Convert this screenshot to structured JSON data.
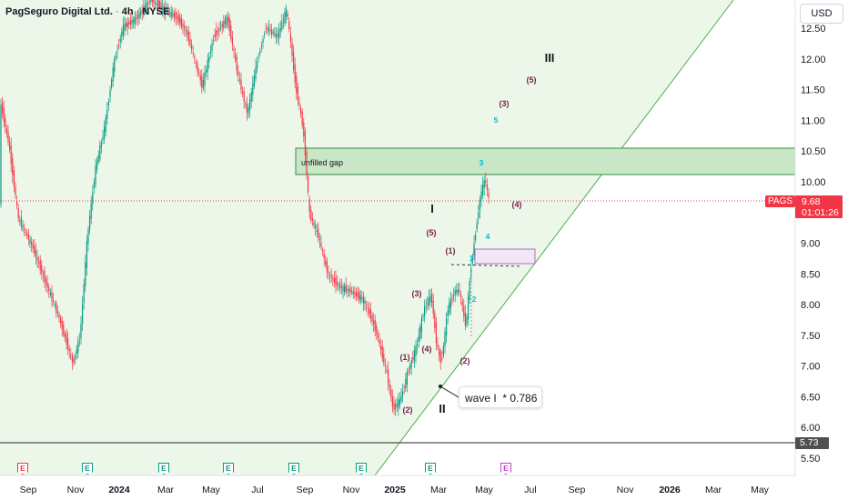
{
  "header": {
    "symbol_name": "PagSeguro Digital Ltd.",
    "interval": "4h",
    "exchange": "NYSE",
    "currency": "USD"
  },
  "price_axis": {
    "ticks": [
      "12.50",
      "12.00",
      "11.50",
      "11.00",
      "10.50",
      "10.00",
      "9.50",
      "9.00",
      "8.50",
      "8.00",
      "7.50",
      "7.00",
      "6.50",
      "6.00",
      "5.50"
    ]
  },
  "time_axis": {
    "ticks": [
      "Sep",
      "Nov",
      "2024",
      "Mar",
      "May",
      "Jul",
      "Sep",
      "Nov",
      "2025",
      "Mar",
      "May",
      "Jul",
      "Sep",
      "Nov",
      "2026",
      "Mar",
      "May"
    ],
    "bold": [
      "2024",
      "2025",
      "2026"
    ]
  },
  "last_price": {
    "symbol": "PAGS",
    "price": "9.68",
    "countdown": "01:01:26",
    "value": 9.68
  },
  "low_marker": {
    "price": "5.73",
    "value": 5.73
  },
  "annotations": {
    "gap_label": "unfilled gap",
    "gap_range": [
      10.12,
      10.55
    ],
    "wave_callout": "wave I  * 0.786",
    "labels": [
      "I",
      "II",
      "III",
      "(1)",
      "(2)",
      "(3)",
      "(4)",
      "(5)",
      "(1)",
      "(2)",
      "(3)",
      "(4)",
      "(5)",
      "1",
      "2",
      "3",
      "4",
      "5"
    ]
  },
  "events": [
    {
      "letter": "E",
      "color": "#f23645"
    },
    {
      "letter": "E",
      "color": "#089981"
    },
    {
      "letter": "E",
      "color": "#089981"
    },
    {
      "letter": "E",
      "color": "#089981"
    },
    {
      "letter": "E",
      "color": "#089981"
    },
    {
      "letter": "E",
      "color": "#089981"
    },
    {
      "letter": "E",
      "color": "#089981"
    },
    {
      "letter": "E",
      "color": "#c23ec9"
    }
  ],
  "colors": {
    "up": "#089981",
    "down": "#f23645",
    "wave_major": "#7b1f4c",
    "wave_minor": "#00bcd4",
    "channel_fill": "#eaf5e7",
    "gap_fill": "#cde8cc"
  }
}
